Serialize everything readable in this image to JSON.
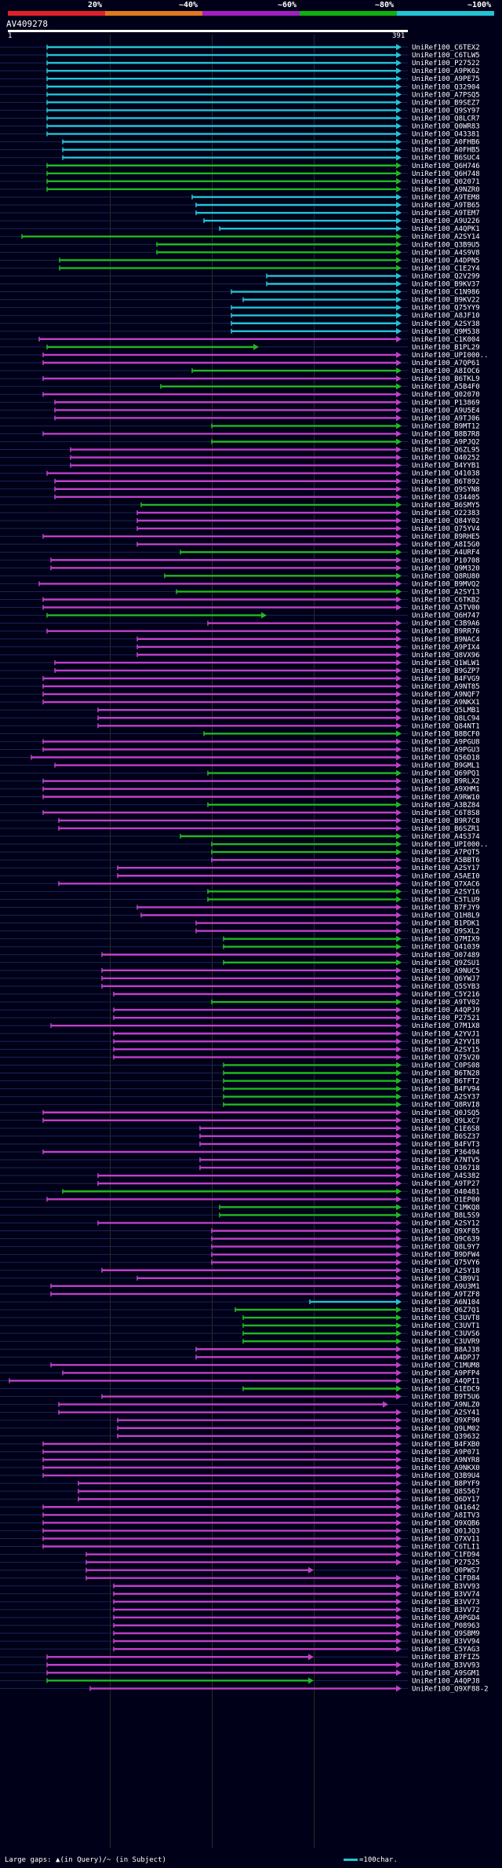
{
  "scale": {
    "labels": [
      "20%",
      "~40%",
      "~60%",
      "~80%",
      "~100%"
    ],
    "colors": [
      "#e0202a",
      "#e07820",
      "#a020c0",
      "#10b010",
      "#22c4d4"
    ]
  },
  "query": {
    "title": "AV409278",
    "start": "1",
    "end": "391"
  },
  "legend": {
    "left": "Large gaps: ▲(in Query)/~ (in Subject)",
    "right": "=100char."
  },
  "hits": [
    {
      "name": "UniRef100_C6TEX2",
      "c": 4,
      "s": 60,
      "e": 512
    },
    {
      "name": "UniRef100_C6TLW5",
      "c": 4,
      "s": 60,
      "e": 512
    },
    {
      "name": "UniRef100_P27522",
      "c": 4,
      "s": 60,
      "e": 512
    },
    {
      "name": "UniRef100_A9PK62",
      "c": 4,
      "s": 60,
      "e": 512
    },
    {
      "name": "UniRef100_A9PE75",
      "c": 4,
      "s": 60,
      "e": 512
    },
    {
      "name": "UniRef100_Q32904",
      "c": 4,
      "s": 60,
      "e": 512
    },
    {
      "name": "UniRef100_A7PSQ5",
      "c": 4,
      "s": 60,
      "e": 512
    },
    {
      "name": "UniRef100_B9SEZ7",
      "c": 4,
      "s": 60,
      "e": 512
    },
    {
      "name": "UniRef100_Q9SY97",
      "c": 4,
      "s": 60,
      "e": 512
    },
    {
      "name": "UniRef100_Q8LCR7",
      "c": 4,
      "s": 60,
      "e": 512
    },
    {
      "name": "UniRef100_Q0WR83",
      "c": 4,
      "s": 60,
      "e": 512
    },
    {
      "name": "UniRef100_O43381",
      "c": 4,
      "s": 60,
      "e": 512
    },
    {
      "name": "UniRef100_A0FHB6",
      "c": 4,
      "s": 80,
      "e": 512
    },
    {
      "name": "UniRef100_A0FHB5",
      "c": 4,
      "s": 80,
      "e": 512
    },
    {
      "name": "UniRef100_B6SUC4",
      "c": 4,
      "s": 80,
      "e": 512
    },
    {
      "name": "UniRef100_Q6H746",
      "c": 3,
      "s": 60,
      "e": 512
    },
    {
      "name": "UniRef100_Q6H748",
      "c": 3,
      "s": 60,
      "e": 512
    },
    {
      "name": "UniRef100_Q02071",
      "c": 3,
      "s": 60,
      "e": 512
    },
    {
      "name": "UniRef100_A9NZR0",
      "c": 3,
      "s": 60,
      "e": 512
    },
    {
      "name": "UniRef100_A9TEM8",
      "c": 4,
      "s": 245,
      "e": 512
    },
    {
      "name": "UniRef100_A9TB65",
      "c": 4,
      "s": 250,
      "e": 512
    },
    {
      "name": "UniRef100_A9TEM7",
      "c": 4,
      "s": 250,
      "e": 512
    },
    {
      "name": "UniRef100_A9U226",
      "c": 4,
      "s": 260,
      "e": 512
    },
    {
      "name": "UniRef100_A4QPK1",
      "c": 4,
      "s": 280,
      "e": 512
    },
    {
      "name": "UniRef100_A2SY14",
      "c": 3,
      "s": 28,
      "e": 512
    },
    {
      "name": "UniRef100_Q3B9U5",
      "c": 3,
      "s": 200,
      "e": 512
    },
    {
      "name": "UniRef100_A4S9V8",
      "c": 3,
      "s": 200,
      "e": 512
    },
    {
      "name": "UniRef100_A4DPN5",
      "c": 3,
      "s": 76,
      "e": 512
    },
    {
      "name": "UniRef100_C1E2Y4",
      "c": 3,
      "s": 76,
      "e": 512
    },
    {
      "name": "UniRef100_Q2V299",
      "c": 4,
      "s": 340,
      "e": 512
    },
    {
      "name": "UniRef100_B9KV37",
      "c": 4,
      "s": 340,
      "e": 512
    },
    {
      "name": "UniRef100_C1N986",
      "c": 4,
      "s": 295,
      "e": 512
    },
    {
      "name": "UniRef100_B9KV22",
      "c": 4,
      "s": 310,
      "e": 512
    },
    {
      "name": "UniRef100_Q75YY9",
      "c": 4,
      "s": 295,
      "e": 512
    },
    {
      "name": "UniRef100_A8JF10",
      "c": 4,
      "s": 295,
      "e": 512
    },
    {
      "name": "UniRef100_A2SY38",
      "c": 4,
      "s": 295,
      "e": 512
    },
    {
      "name": "UniRef100_Q9M538",
      "c": 4,
      "s": 295,
      "e": 512
    },
    {
      "name": "UniRef100_C1K004",
      "c": 2,
      "s": 50,
      "e": 512
    },
    {
      "name": "UniRef100_B1PL29",
      "c": 3,
      "s": 60,
      "e": 330
    },
    {
      "name": "UniRef100_UPI000..",
      "c": 2,
      "s": 55,
      "e": 512
    },
    {
      "name": "UniRef100_A7QP61",
      "c": 2,
      "s": 55,
      "e": 512
    },
    {
      "name": "UniRef100_A8IOC6",
      "c": 3,
      "s": 245,
      "e": 512
    },
    {
      "name": "UniRef100_B6TKL9",
      "c": 2,
      "s": 55,
      "e": 512
    },
    {
      "name": "UniRef100_A5B4F0",
      "c": 3,
      "s": 205,
      "e": 512
    },
    {
      "name": "UniRef100_Q02070",
      "c": 2,
      "s": 55,
      "e": 512
    },
    {
      "name": "UniRef100_P13869",
      "c": 2,
      "s": 70,
      "e": 512
    },
    {
      "name": "UniRef100_A9U5E4",
      "c": 2,
      "s": 70,
      "e": 512
    },
    {
      "name": "UniRef100_A9TJ06",
      "c": 2,
      "s": 70,
      "e": 512
    },
    {
      "name": "UniRef100_B9MT12",
      "c": 3,
      "s": 270,
      "e": 512
    },
    {
      "name": "UniRef100_B8B7R8",
      "c": 2,
      "s": 55,
      "e": 512
    },
    {
      "name": "UniRef100_A9PJQ2",
      "c": 3,
      "s": 270,
      "e": 512
    },
    {
      "name": "UniRef100_Q6ZL95",
      "c": 2,
      "s": 90,
      "e": 512
    },
    {
      "name": "UniRef100_O40252",
      "c": 2,
      "s": 90,
      "e": 512
    },
    {
      "name": "UniRef100_B4YYB1",
      "c": 2,
      "s": 90,
      "e": 512
    },
    {
      "name": "UniRef100_Q41038",
      "c": 2,
      "s": 60,
      "e": 512
    },
    {
      "name": "UniRef100_B6T892",
      "c": 2,
      "s": 70,
      "e": 512
    },
    {
      "name": "UniRef100_Q9SYN8",
      "c": 2,
      "s": 70,
      "e": 512
    },
    {
      "name": "UniRef100_O34405",
      "c": 2,
      "s": 70,
      "e": 512
    },
    {
      "name": "UniRef100_B6SMY5",
      "c": 3,
      "s": 180,
      "e": 512
    },
    {
      "name": "UniRef100_O22383",
      "c": 2,
      "s": 175,
      "e": 512
    },
    {
      "name": "UniRef100_Q84Y02",
      "c": 2,
      "s": 175,
      "e": 512
    },
    {
      "name": "UniRef100_Q75YV4",
      "c": 2,
      "s": 175,
      "e": 512
    },
    {
      "name": "UniRef100_B9RHE5",
      "c": 2,
      "s": 55,
      "e": 512
    },
    {
      "name": "UniRef100_A8I5G0",
      "c": 2,
      "s": 175,
      "e": 512
    },
    {
      "name": "UniRef100_A4URF4",
      "c": 3,
      "s": 230,
      "e": 512
    },
    {
      "name": "UniRef100_P10708",
      "c": 2,
      "s": 65,
      "e": 512
    },
    {
      "name": "UniRef100_Q9M320",
      "c": 2,
      "s": 65,
      "e": 512
    },
    {
      "name": "UniRef100_Q8RU80",
      "c": 3,
      "s": 210,
      "e": 512
    },
    {
      "name": "UniRef100_B9MVQ2",
      "c": 2,
      "s": 50,
      "e": 512
    },
    {
      "name": "UniRef100_A2SY13",
      "c": 3,
      "s": 225,
      "e": 512
    },
    {
      "name": "UniRef100_C6TKB2",
      "c": 2,
      "s": 55,
      "e": 512
    },
    {
      "name": "UniRef100_A5TV00",
      "c": 2,
      "s": 55,
      "e": 512
    },
    {
      "name": "UniRef100_Q6H747",
      "c": 3,
      "s": 60,
      "e": 340
    },
    {
      "name": "UniRef100_C3B9A6",
      "c": 2,
      "s": 265,
      "e": 512
    },
    {
      "name": "UniRef100_B9RR76",
      "c": 2,
      "s": 60,
      "e": 512
    },
    {
      "name": "UniRef100_B9NAC4",
      "c": 2,
      "s": 175,
      "e": 512
    },
    {
      "name": "UniRef100_A9PIX4",
      "c": 2,
      "s": 175,
      "e": 512
    },
    {
      "name": "UniRef100_Q8VX96",
      "c": 2,
      "s": 175,
      "e": 512
    },
    {
      "name": "UniRef100_Q1WLW1",
      "c": 2,
      "s": 70,
      "e": 512
    },
    {
      "name": "UniRef100_B9GZP7",
      "c": 2,
      "s": 70,
      "e": 512
    },
    {
      "name": "UniRef100_B4FVG9",
      "c": 2,
      "s": 55,
      "e": 512
    },
    {
      "name": "UniRef100_A9NT85",
      "c": 2,
      "s": 55,
      "e": 512
    },
    {
      "name": "UniRef100_A9NQF7",
      "c": 2,
      "s": 55,
      "e": 512
    },
    {
      "name": "UniRef100_A9NKX1",
      "c": 2,
      "s": 55,
      "e": 512
    },
    {
      "name": "UniRef100_Q5LMB1",
      "c": 2,
      "s": 125,
      "e": 512
    },
    {
      "name": "UniRef100_Q8LC94",
      "c": 2,
      "s": 125,
      "e": 512
    },
    {
      "name": "UniRef100_Q84NT1",
      "c": 2,
      "s": 125,
      "e": 512
    },
    {
      "name": "UniRef100_B8BCF0",
      "c": 3,
      "s": 260,
      "e": 512
    },
    {
      "name": "UniRef100_A9PGU8",
      "c": 2,
      "s": 55,
      "e": 512
    },
    {
      "name": "UniRef100_A9PGU3",
      "c": 2,
      "s": 55,
      "e": 512
    },
    {
      "name": "UniRef100_Q56D18",
      "c": 2,
      "s": 40,
      "e": 512
    },
    {
      "name": "UniRef100_B9GML1",
      "c": 2,
      "s": 70,
      "e": 512
    },
    {
      "name": "UniRef100_Q69PQ1",
      "c": 3,
      "s": 265,
      "e": 512
    },
    {
      "name": "UniRef100_B9RLX2",
      "c": 2,
      "s": 55,
      "e": 512
    },
    {
      "name": "UniRef100_A9XHM1",
      "c": 2,
      "s": 55,
      "e": 512
    },
    {
      "name": "UniRef100_A9RW10",
      "c": 2,
      "s": 55,
      "e": 512
    },
    {
      "name": "UniRef100_A3BZ84",
      "c": 3,
      "s": 265,
      "e": 512
    },
    {
      "name": "UniRef100_C6T8S8",
      "c": 2,
      "s": 55,
      "e": 512
    },
    {
      "name": "UniRef100_B9R7C8",
      "c": 2,
      "s": 75,
      "e": 512
    },
    {
      "name": "UniRef100_B6SZR1",
      "c": 2,
      "s": 75,
      "e": 512
    },
    {
      "name": "UniRef100_A4S374",
      "c": 3,
      "s": 230,
      "e": 512
    },
    {
      "name": "UniRef100_UPI000..",
      "c": 3,
      "s": 270,
      "e": 512
    },
    {
      "name": "UniRef100_A7PQT5",
      "c": 3,
      "s": 270,
      "e": 512
    },
    {
      "name": "UniRef100_A5BBT6",
      "c": 2,
      "s": 270,
      "e": 512
    },
    {
      "name": "UniRef100_A2SY17",
      "c": 2,
      "s": 150,
      "e": 512
    },
    {
      "name": "UniRef100_A5AEI0",
      "c": 2,
      "s": 150,
      "e": 512
    },
    {
      "name": "UniRef100_Q7XAC6",
      "c": 2,
      "s": 75,
      "e": 512
    },
    {
      "name": "UniRef100_A2SY16",
      "c": 3,
      "s": 265,
      "e": 512
    },
    {
      "name": "UniRef100_C5TLU9",
      "c": 3,
      "s": 265,
      "e": 512
    },
    {
      "name": "UniRef100_B7FJY9",
      "c": 2,
      "s": 175,
      "e": 512
    },
    {
      "name": "UniRef100_Q1H8L9",
      "c": 2,
      "s": 180,
      "e": 512
    },
    {
      "name": "UniRef100_B1PDK1",
      "c": 2,
      "s": 250,
      "e": 512
    },
    {
      "name": "UniRef100_Q9SXL2",
      "c": 2,
      "s": 250,
      "e": 512
    },
    {
      "name": "UniRef100_Q7MIX9",
      "c": 3,
      "s": 285,
      "e": 512
    },
    {
      "name": "UniRef100_Q41039",
      "c": 3,
      "s": 285,
      "e": 512
    },
    {
      "name": "UniRef100_O07489",
      "c": 2,
      "s": 130,
      "e": 512
    },
    {
      "name": "UniRef100_Q9ZSU1",
      "c": 3,
      "s": 285,
      "e": 512
    },
    {
      "name": "UniRef100_A9NUC5",
      "c": 2,
      "s": 130,
      "e": 512
    },
    {
      "name": "UniRef100_Q6YWJ7",
      "c": 2,
      "s": 130,
      "e": 512
    },
    {
      "name": "UniRef100_Q5SYB3",
      "c": 2,
      "s": 130,
      "e": 512
    },
    {
      "name": "UniRef100_C5Y216",
      "c": 2,
      "s": 145,
      "e": 512
    },
    {
      "name": "UniRef100_A9TV02",
      "c": 3,
      "s": 270,
      "e": 512
    },
    {
      "name": "UniRef100_A4QPJ9",
      "c": 2,
      "s": 145,
      "e": 512
    },
    {
      "name": "UniRef100_P27521",
      "c": 2,
      "s": 145,
      "e": 512
    },
    {
      "name": "UniRef100_O7M1X8",
      "c": 2,
      "s": 65,
      "e": 512
    },
    {
      "name": "UniRef100_A2YVJ1",
      "c": 2,
      "s": 145,
      "e": 512
    },
    {
      "name": "UniRef100_A2YV18",
      "c": 2,
      "s": 145,
      "e": 512
    },
    {
      "name": "UniRef100_A2SY15",
      "c": 2,
      "s": 145,
      "e": 512
    },
    {
      "name": "UniRef100_Q75V20",
      "c": 2,
      "s": 145,
      "e": 512
    },
    {
      "name": "UniRef100_C0PS08",
      "c": 3,
      "s": 285,
      "e": 512
    },
    {
      "name": "UniRef100_B6TN28",
      "c": 3,
      "s": 285,
      "e": 512
    },
    {
      "name": "UniRef100_B6TFT2",
      "c": 3,
      "s": 285,
      "e": 512
    },
    {
      "name": "UniRef100_B4FV94",
      "c": 3,
      "s": 285,
      "e": 512
    },
    {
      "name": "UniRef100_A2SY37",
      "c": 3,
      "s": 285,
      "e": 512
    },
    {
      "name": "UniRef100_Q8RVI8",
      "c": 3,
      "s": 285,
      "e": 512
    },
    {
      "name": "UniRef100_Q0JSQ5",
      "c": 2,
      "s": 55,
      "e": 512
    },
    {
      "name": "UniRef100_Q9LXC7",
      "c": 2,
      "s": 55,
      "e": 512
    },
    {
      "name": "UniRef100_C1E6S8",
      "c": 2,
      "s": 255,
      "e": 512
    },
    {
      "name": "UniRef100_B6SZ37",
      "c": 2,
      "s": 255,
      "e": 512
    },
    {
      "name": "UniRef100_B4FVT3",
      "c": 2,
      "s": 255,
      "e": 512
    },
    {
      "name": "UniRef100_P36494",
      "c": 2,
      "s": 55,
      "e": 512
    },
    {
      "name": "UniRef100_A7NTV5",
      "c": 2,
      "s": 255,
      "e": 512
    },
    {
      "name": "UniRef100_O36718",
      "c": 2,
      "s": 255,
      "e": 512
    },
    {
      "name": "UniRef100_A4S382",
      "c": 2,
      "s": 125,
      "e": 512
    },
    {
      "name": "UniRef100_A9TP27",
      "c": 2,
      "s": 125,
      "e": 512
    },
    {
      "name": "UniRef100_O40481",
      "c": 3,
      "s": 80,
      "e": 512
    },
    {
      "name": "UniRef100_O1EP00",
      "c": 2,
      "s": 60,
      "e": 512
    },
    {
      "name": "UniRef100_C1MKQ8",
      "c": 3,
      "s": 280,
      "e": 512
    },
    {
      "name": "UniRef100_B8L5S9",
      "c": 3,
      "s": 280,
      "e": 512
    },
    {
      "name": "UniRef100_A2SY12",
      "c": 2,
      "s": 125,
      "e": 512
    },
    {
      "name": "UniRef100_Q9XF85",
      "c": 2,
      "s": 270,
      "e": 512
    },
    {
      "name": "UniRef100_Q9C639",
      "c": 2,
      "s": 270,
      "e": 512
    },
    {
      "name": "UniRef100_Q8L9Y7",
      "c": 2,
      "s": 270,
      "e": 512
    },
    {
      "name": "UniRef100_B9DFW4",
      "c": 2,
      "s": 270,
      "e": 512
    },
    {
      "name": "UniRef100_Q75VY6",
      "c": 2,
      "s": 270,
      "e": 512
    },
    {
      "name": "UniRef100_A2SY18",
      "c": 2,
      "s": 130,
      "e": 512
    },
    {
      "name": "UniRef100_C3B9V1",
      "c": 2,
      "s": 175,
      "e": 512
    },
    {
      "name": "UniRef100_A9U3M1",
      "c": 2,
      "s": 65,
      "e": 512
    },
    {
      "name": "UniRef100_A9TZF8",
      "c": 2,
      "s": 65,
      "e": 512
    },
    {
      "name": "UniRef100_A6N104",
      "c": 4,
      "s": 395,
      "e": 512
    },
    {
      "name": "UniRef100_Q6Z7Q1",
      "c": 3,
      "s": 300,
      "e": 512
    },
    {
      "name": "UniRef100_C3UVT8",
      "c": 3,
      "s": 310,
      "e": 512
    },
    {
      "name": "UniRef100_C3UVT1",
      "c": 3,
      "s": 310,
      "e": 512
    },
    {
      "name": "UniRef100_C3UVS6",
      "c": 3,
      "s": 310,
      "e": 512
    },
    {
      "name": "UniRef100_C3UVR9",
      "c": 3,
      "s": 310,
      "e": 512
    },
    {
      "name": "UniRef100_B8AJ38",
      "c": 2,
      "s": 250,
      "e": 512
    },
    {
      "name": "UniRef100_A4DPJ7",
      "c": 2,
      "s": 250,
      "e": 512
    },
    {
      "name": "UniRef100_C1MUM8",
      "c": 2,
      "s": 65,
      "e": 512
    },
    {
      "name": "UniRef100_A9PFP4",
      "c": 2,
      "s": 80,
      "e": 512
    },
    {
      "name": "UniRef100_A4QPI1",
      "c": 2,
      "s": 12,
      "e": 512
    },
    {
      "name": "UniRef100_C1EDC9",
      "c": 3,
      "s": 310,
      "e": 512
    },
    {
      "name": "UniRef100_B9T5U6",
      "c": 2,
      "s": 130,
      "e": 512
    },
    {
      "name": "UniRef100_A9NLZ0",
      "c": 2,
      "s": 75,
      "e": 495
    },
    {
      "name": "UniRef100_A2SY41",
      "c": 2,
      "s": 75,
      "e": 512
    },
    {
      "name": "UniRef100_Q9XF90",
      "c": 2,
      "s": 150,
      "e": 512
    },
    {
      "name": "UniRef100_Q9LM02",
      "c": 2,
      "s": 150,
      "e": 512
    },
    {
      "name": "UniRef100_Q39632",
      "c": 2,
      "s": 150,
      "e": 512
    },
    {
      "name": "UniRef100_B4FXB0",
      "c": 2,
      "s": 55,
      "e": 512
    },
    {
      "name": "UniRef100_A9P071",
      "c": 2,
      "s": 55,
      "e": 512
    },
    {
      "name": "UniRef100_A9NYR8",
      "c": 2,
      "s": 55,
      "e": 512
    },
    {
      "name": "UniRef100_A9NKX0",
      "c": 2,
      "s": 55,
      "e": 512
    },
    {
      "name": "UniRef100_Q3B9U4",
      "c": 2,
      "s": 55,
      "e": 512
    },
    {
      "name": "UniRef100_B8PYF9",
      "c": 2,
      "s": 100,
      "e": 512
    },
    {
      "name": "UniRef100_Q8S567",
      "c": 2,
      "s": 100,
      "e": 512
    },
    {
      "name": "UniRef100_Q6DY17",
      "c": 2,
      "s": 100,
      "e": 512
    },
    {
      "name": "UniRef100_Q41642",
      "c": 2,
      "s": 55,
      "e": 512
    },
    {
      "name": "UniRef100_A8ITV3",
      "c": 2,
      "s": 55,
      "e": 512
    },
    {
      "name": "UniRef100_Q9XQB6",
      "c": 2,
      "s": 55,
      "e": 512
    },
    {
      "name": "UniRef100_Q01JQ3",
      "c": 2,
      "s": 55,
      "e": 512
    },
    {
      "name": "UniRef100_Q7XV11",
      "c": 2,
      "s": 55,
      "e": 512
    },
    {
      "name": "UniRef100_C6TLI1",
      "c": 2,
      "s": 55,
      "e": 512
    },
    {
      "name": "UniRef100_C1FD94",
      "c": 2,
      "s": 110,
      "e": 512
    },
    {
      "name": "UniRef100_P27525",
      "c": 2,
      "s": 110,
      "e": 512
    },
    {
      "name": "UniRef100_Q0PWS7",
      "c": 2,
      "s": 110,
      "e": 400
    },
    {
      "name": "UniRef100_C1FD84",
      "c": 2,
      "s": 110,
      "e": 512
    },
    {
      "name": "UniRef100_B3VV93",
      "c": 2,
      "s": 145,
      "e": 512
    },
    {
      "name": "UniRef100_B3VV74",
      "c": 2,
      "s": 145,
      "e": 512
    },
    {
      "name": "UniRef100_B3VV73",
      "c": 2,
      "s": 145,
      "e": 512
    },
    {
      "name": "UniRef100_B3VV72",
      "c": 2,
      "s": 145,
      "e": 512
    },
    {
      "name": "UniRef100_A9PGD4",
      "c": 2,
      "s": 145,
      "e": 512
    },
    {
      "name": "UniRef100_P08963",
      "c": 2,
      "s": 145,
      "e": 512
    },
    {
      "name": "UniRef100_Q9SBM9",
      "c": 2,
      "s": 145,
      "e": 512
    },
    {
      "name": "UniRef100_B3VV94",
      "c": 2,
      "s": 145,
      "e": 512
    },
    {
      "name": "UniRef100_C5YAG3",
      "c": 2,
      "s": 145,
      "e": 512
    },
    {
      "name": "UniRef100_B7FIZ5",
      "c": 2,
      "s": 60,
      "e": 400
    },
    {
      "name": "UniRef100_B3VV93",
      "c": 2,
      "s": 60,
      "e": 512
    },
    {
      "name": "UniRef100_A9SGM1",
      "c": 2,
      "s": 60,
      "e": 512
    },
    {
      "name": "UniRef100_A4QPJ8",
      "c": 3,
      "s": 60,
      "e": 400
    },
    {
      "name": "UniRef100_Q9XF88-2",
      "c": 2,
      "s": 115,
      "e": 512
    }
  ]
}
